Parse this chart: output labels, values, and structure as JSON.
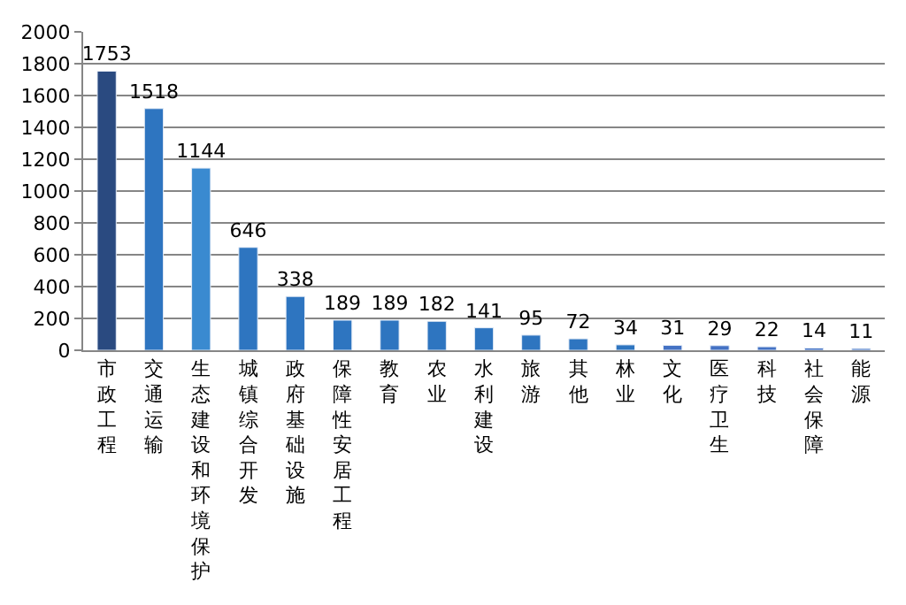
{
  "chart_data": {
    "type": "bar",
    "categories": [
      "市政工程",
      "交通运输",
      "生态建设和环境保护",
      "城镇综合开发",
      "政府基础设施",
      "保障性安居工程",
      "教育",
      "农业",
      "水利建设",
      "旅游",
      "其他",
      "林业",
      "文化",
      "医疗卫生",
      "科技",
      "社会保障",
      "能源"
    ],
    "values": [
      1753,
      1518,
      1144,
      646,
      338,
      189,
      189,
      182,
      141,
      95,
      72,
      34,
      31,
      29,
      22,
      14,
      11
    ],
    "colors": [
      "#2a4a80",
      "#2e75c0",
      "#3a8ad0",
      "#2e75c0",
      "#2e75c0",
      "#2e75c0",
      "#2e75c0",
      "#2e75c0",
      "#2e75c0",
      "#2e75c0",
      "#2e75c0",
      "#2e75c0",
      "#4472c4",
      "#4472c4",
      "#4472c4",
      "#4472c4",
      "#4472c4"
    ],
    "ylim": [
      0,
      2000
    ],
    "yticks": [
      0,
      200,
      400,
      600,
      800,
      1000,
      1200,
      1400,
      1600,
      1800,
      2000
    ],
    "grid": "y",
    "data_labels": true,
    "legend": false
  }
}
